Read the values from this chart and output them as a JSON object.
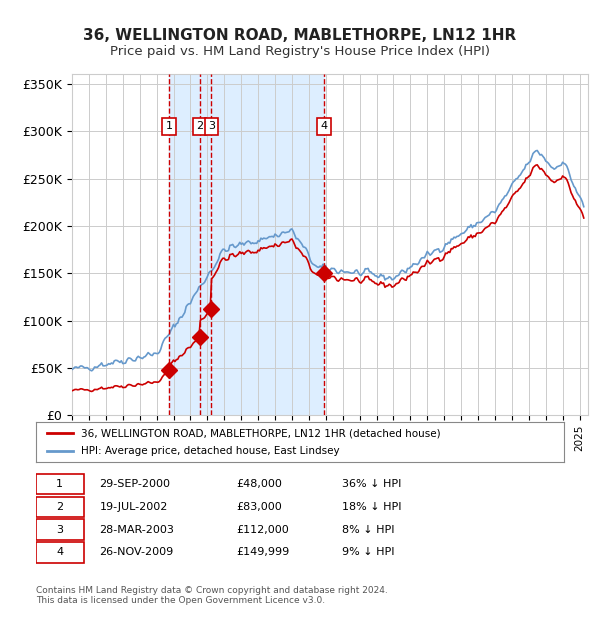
{
  "title1": "36, WELLINGTON ROAD, MABLETHORPE, LN12 1HR",
  "title2": "Price paid vs. HM Land Registry's House Price Index (HPI)",
  "ylabel_ticks": [
    "£0",
    "£50K",
    "£100K",
    "£150K",
    "£200K",
    "£250K",
    "£300K",
    "£350K"
  ],
  "ytick_vals": [
    0,
    50000,
    100000,
    150000,
    200000,
    250000,
    300000,
    350000
  ],
  "ylim": [
    0,
    360000
  ],
  "xlim_start": 1995.0,
  "xlim_end": 2025.5,
  "legend_line1": "36, WELLINGTON ROAD, MABLETHORPE, LN12 1HR (detached house)",
  "legend_line2": "HPI: Average price, detached house, East Lindsey",
  "sale_dates": [
    2000.75,
    2002.54,
    2003.24,
    2009.91
  ],
  "sale_prices": [
    48000,
    83000,
    112000,
    149999
  ],
  "sale_labels": [
    "1",
    "2",
    "3",
    "4"
  ],
  "table_rows": [
    [
      "1",
      "29-SEP-2000",
      "£48,000",
      "36% ↓ HPI"
    ],
    [
      "2",
      "19-JUL-2002",
      "£83,000",
      "18% ↓ HPI"
    ],
    [
      "3",
      "28-MAR-2003",
      "£112,000",
      "8% ↓ HPI"
    ],
    [
      "4",
      "26-NOV-2009",
      "£149,999",
      "9% ↓ HPI"
    ]
  ],
  "footnote": "Contains HM Land Registry data © Crown copyright and database right 2024.\nThis data is licensed under the Open Government Licence v3.0.",
  "hpi_color": "#6699cc",
  "property_color": "#cc0000",
  "shading_color": "#ddeeff",
  "background_color": "#ffffff",
  "grid_color": "#cccccc",
  "label_box_color": "#cc0000",
  "dashed_line_color": "#cc0000"
}
